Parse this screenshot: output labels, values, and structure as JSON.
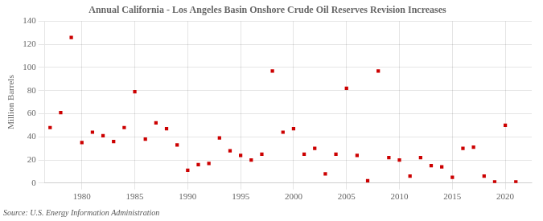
{
  "chart_data": {
    "type": "scatter",
    "title": "Annual California - Los Angeles Basin Onshore Crude Oil Reserves Revision Increases",
    "ylabel": "Million Barrels",
    "annotations": [
      "Source: U.S. Energy Information Administration"
    ],
    "x": [
      1977,
      1978,
      1979,
      1980,
      1981,
      1982,
      1983,
      1984,
      1985,
      1986,
      1987,
      1988,
      1989,
      1990,
      1991,
      1992,
      1993,
      1994,
      1995,
      1996,
      1997,
      1998,
      1999,
      2000,
      2001,
      2002,
      2003,
      2004,
      2005,
      2006,
      2007,
      2008,
      2009,
      2010,
      2011,
      2012,
      2013,
      2014,
      2015,
      2016,
      2017,
      2018,
      2019,
      2020,
      2021
    ],
    "values": [
      48,
      61,
      126,
      35,
      44,
      41,
      36,
      48,
      79,
      38,
      52,
      47,
      33,
      11,
      16,
      17,
      39,
      28,
      24,
      20,
      25,
      97,
      44,
      47,
      25,
      30,
      8,
      25,
      82,
      24,
      2,
      97,
      22,
      20,
      6,
      22,
      15,
      14,
      5,
      30,
      31,
      6,
      1,
      50,
      1
    ],
    "color": "#cc0000",
    "marker": "square",
    "xlim": [
      1976.5,
      2022.5
    ],
    "ylim": [
      0,
      140
    ],
    "xticks": [
      1980,
      1985,
      1990,
      1995,
      2000,
      2005,
      2010,
      2015,
      2020
    ],
    "yticks": [
      0,
      20,
      40,
      60,
      80,
      100,
      120,
      140
    ],
    "grid": true
  }
}
